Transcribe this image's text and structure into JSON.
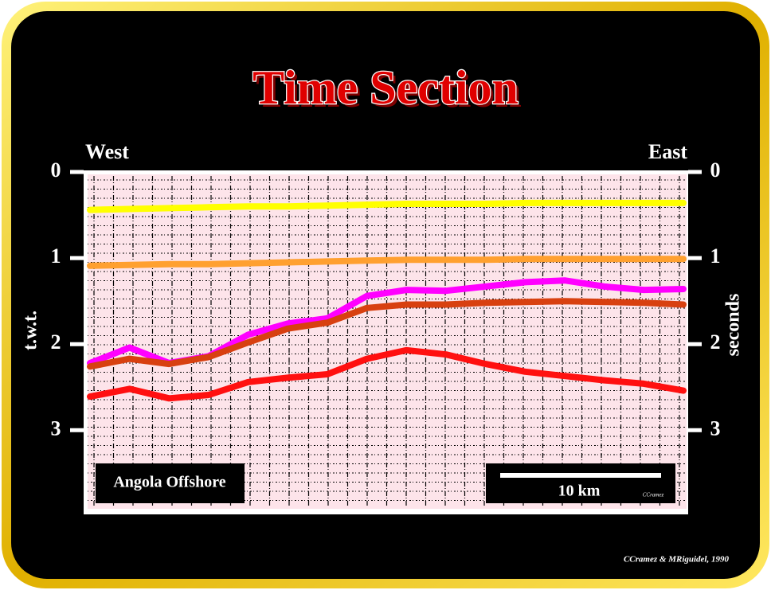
{
  "chart_data": {
    "type": "line",
    "title": "Time Section",
    "left_label": "West",
    "right_label": "East",
    "ylabel": "t.w.t.",
    "y2label": "seconds",
    "location_label": "Angola Offshore",
    "scale_label": "10 km",
    "small_credit": "CCramez",
    "credit": "CCramez & MRiguidel, 1990",
    "y_inverted": true,
    "categories": [
      null,
      null,
      null,
      null,
      null,
      null,
      null,
      null,
      null,
      null,
      null,
      null,
      null,
      null,
      null,
      null
    ],
    "ylim": [
      0,
      3.95
    ],
    "yticks": [
      0,
      1,
      2,
      3
    ],
    "y2lim": [
      0,
      3.95
    ],
    "y2ticks": [
      0,
      1,
      2,
      3
    ],
    "series": [
      {
        "color": "#ffff00",
        "values": [
          0.44,
          0.43,
          0.42,
          0.41,
          0.4,
          0.4,
          0.39,
          0.38,
          0.37,
          0.37,
          0.37,
          0.36,
          0.36,
          0.36,
          0.36,
          0.36
        ]
      },
      {
        "color": "#ffa030",
        "values": [
          1.09,
          1.08,
          1.07,
          1.07,
          1.06,
          1.05,
          1.04,
          1.03,
          1.02,
          1.02,
          1.02,
          1.01,
          1.01,
          1.01,
          1.01,
          1.01
        ]
      },
      {
        "color": "#ff00ff",
        "values": [
          2.22,
          2.04,
          2.22,
          2.14,
          1.89,
          1.76,
          1.7,
          1.44,
          1.37,
          1.38,
          1.33,
          1.28,
          1.26,
          1.33,
          1.37,
          1.36
        ]
      },
      {
        "color": "#d84010",
        "values": [
          2.26,
          2.17,
          2.23,
          2.15,
          1.98,
          1.82,
          1.75,
          1.58,
          1.54,
          1.54,
          1.52,
          1.51,
          1.5,
          1.51,
          1.52,
          1.54
        ]
      },
      {
        "color": "#ff1010",
        "values": [
          2.61,
          2.52,
          2.63,
          2.59,
          2.44,
          2.39,
          2.35,
          2.17,
          2.07,
          2.12,
          2.23,
          2.32,
          2.37,
          2.42,
          2.46,
          2.54
        ]
      }
    ]
  }
}
